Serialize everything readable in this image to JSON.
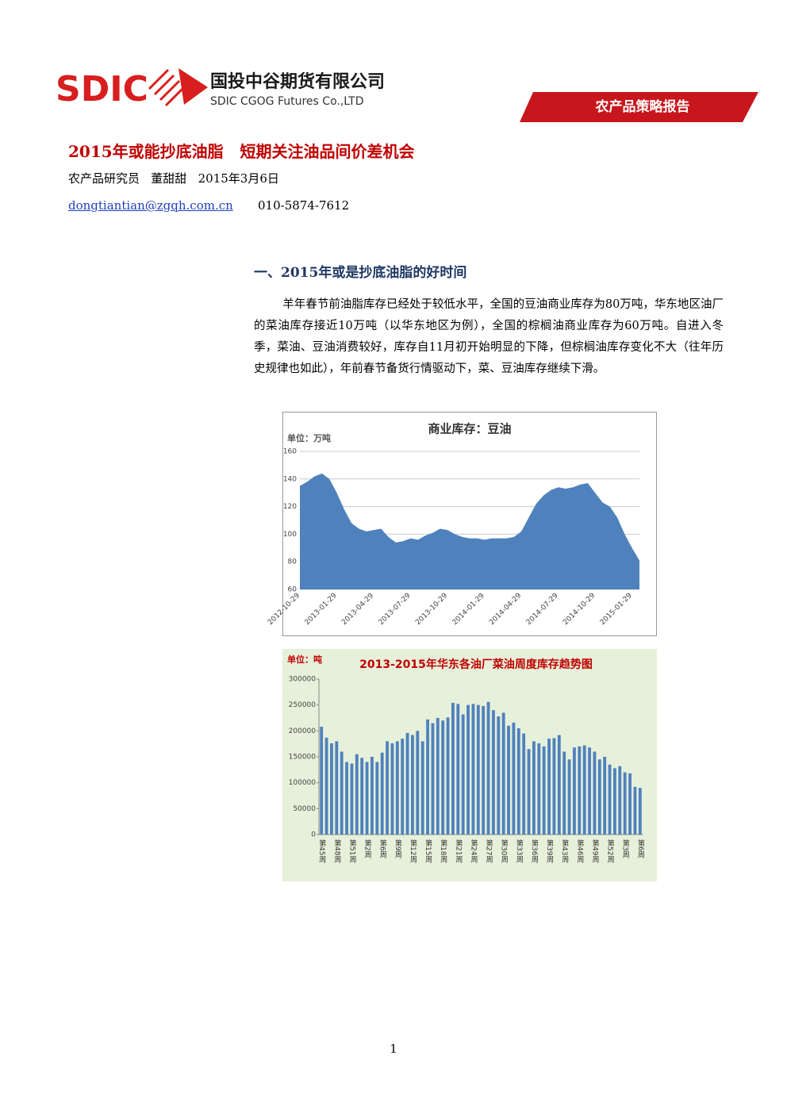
{
  "header": {
    "logo": "SDIC",
    "company_cn": "国投中谷期货有限公司",
    "company_en": "SDIC CGOG Futures Co.,LTD",
    "banner": "农产品策略报告"
  },
  "title": "2015年或能抄底油脂   短期关注油品间价差机会",
  "author": "农产品研究员   董甜甜   2015年3月6日",
  "contact": {
    "email": "dongtiantian@zgqh.com.cn",
    "phone": "010-5874-7612"
  },
  "section": "一、2015年或是抄底油脂的好时间",
  "paragraph": "羊年春节前油脂库存已经处于较低水平，全国的豆油商业库存为80万吨，华东地区油厂的菜油库存接近10万吨（以华东地区为例），全国的棕榈油商业库存为60万吨。自进入冬季，菜油、豆油消费较好，库存自11月初开始明显的下降，但棕榈油库存变化不大（往年历史规律也如此），年前春节备货行情驱动下，菜、豆油库存继续下滑。",
  "chart_data": [
    {
      "type": "area",
      "title": "商业库存：豆油",
      "unit": "单位：万吨",
      "color": "#4f81bd",
      "categories": [
        "2012-10-29",
        null,
        null,
        null,
        null,
        "2013-01-29",
        null,
        null,
        null,
        null,
        "2013-04-29",
        null,
        null,
        null,
        null,
        "2013-07-29",
        null,
        null,
        null,
        null,
        "2013-10-29",
        null,
        null,
        null,
        null,
        "2014-01-29",
        null,
        null,
        null,
        null,
        "2014-04-29",
        null,
        null,
        null,
        null,
        "2014-07-29",
        null,
        null,
        null,
        null,
        "2014-10-29",
        null,
        null,
        null,
        null,
        "2015-01-29",
        null
      ],
      "values": [
        135,
        138,
        142,
        144,
        140,
        130,
        118,
        108,
        104,
        102,
        103,
        104,
        98,
        94,
        95,
        97,
        96,
        99,
        101,
        104,
        103,
        100,
        98,
        97,
        97,
        96,
        97,
        97,
        97,
        98,
        102,
        112,
        122,
        128,
        132,
        134,
        133,
        134,
        136,
        137,
        130,
        123,
        120,
        112,
        100,
        90,
        81
      ],
      "ylim": [
        60,
        160
      ],
      "yticks": [
        60,
        80,
        100,
        120,
        140,
        160
      ]
    },
    {
      "type": "bar",
      "title": "2013-2015年华东各油厂菜油周度库存趋势图",
      "unit": "单位：吨",
      "color": "#4f81bd",
      "categories": [
        "第45周",
        null,
        null,
        "第48周",
        null,
        null,
        "第51周",
        null,
        null,
        "第2周",
        null,
        null,
        "第6周",
        null,
        null,
        "第9周",
        null,
        null,
        "第12周",
        null,
        null,
        "第15周",
        null,
        null,
        "第18周",
        null,
        null,
        "第21周",
        null,
        null,
        "第24周",
        null,
        null,
        "第27周",
        null,
        null,
        "第30周",
        null,
        null,
        "第33周",
        null,
        null,
        "第36周",
        null,
        null,
        "第39周",
        null,
        null,
        "第43周",
        null,
        null,
        "第46周",
        null,
        null,
        "第49周",
        null,
        null,
        "第52周",
        null,
        null,
        "第3周",
        null,
        null,
        "第6周"
      ],
      "values": [
        208000,
        187000,
        176000,
        180000,
        160000,
        140000,
        137000,
        155000,
        148000,
        140000,
        150000,
        140000,
        158000,
        180000,
        176000,
        180000,
        185000,
        196000,
        192000,
        200000,
        180000,
        222000,
        215000,
        225000,
        220000,
        226000,
        254000,
        252000,
        232000,
        250000,
        252000,
        250000,
        248000,
        256000,
        240000,
        228000,
        235000,
        210000,
        216000,
        205000,
        195000,
        165000,
        180000,
        176000,
        170000,
        185000,
        186000,
        192000,
        160000,
        145000,
        168000,
        170000,
        172000,
        168000,
        160000,
        145000,
        150000,
        135000,
        128000,
        132000,
        120000,
        118000,
        92000,
        90000
      ],
      "ylim": [
        0,
        300000
      ],
      "yticks": [
        0,
        50000,
        100000,
        150000,
        200000,
        250000,
        300000
      ]
    }
  ],
  "page_number": "1"
}
